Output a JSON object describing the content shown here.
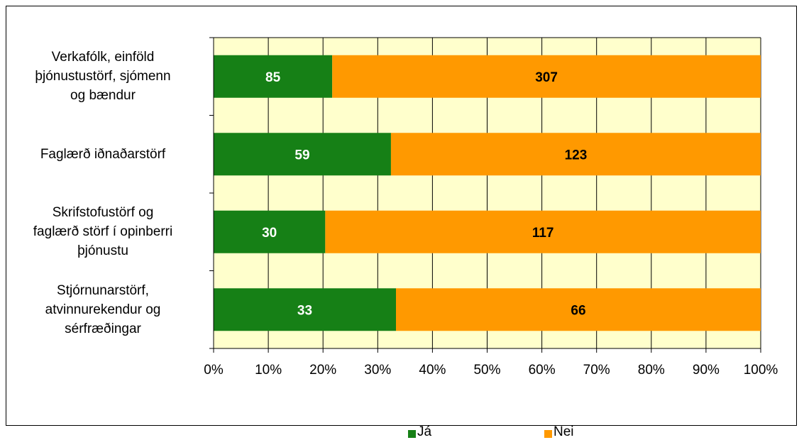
{
  "chart_data": {
    "type": "bar",
    "orientation": "horizontal",
    "stacked": "percent",
    "categories": [
      "Verkafólk, einföld þjónustustörf, sjómenn og bændur",
      "Faglærð iðnaðarstörf",
      "Skrifstofustörf og faglærð störf í opinberri þjónustu",
      "Stjórnunarstörf, atvinnurekendur og sérfræðingar"
    ],
    "category_lines": [
      [
        "Verkafólk, einföld",
        "þjónustustörf, sjómenn",
        "og bændur"
      ],
      [
        "Faglærð iðnaðarstörf"
      ],
      [
        "Skrifstofustörf og",
        "faglærð störf í opinberri",
        "þjónustu"
      ],
      [
        "Stjórnunarstörf,",
        "atvinnurekendur og",
        "sérfræðingar"
      ]
    ],
    "series": [
      {
        "name": "Já",
        "values": [
          85,
          59,
          30,
          33
        ],
        "color": "#168016",
        "label_color": "#ffffff"
      },
      {
        "name": "Nei",
        "values": [
          307,
          123,
          117,
          66
        ],
        "color": "#ff9900",
        "label_color": "#000000"
      }
    ],
    "xlim": [
      0,
      100
    ],
    "x_ticks": [
      "0%",
      "10%",
      "20%",
      "30%",
      "40%",
      "50%",
      "60%",
      "70%",
      "80%",
      "90%",
      "100%"
    ],
    "plot_background": "#ffffcc",
    "grid": true,
    "legend_position": "bottom"
  }
}
